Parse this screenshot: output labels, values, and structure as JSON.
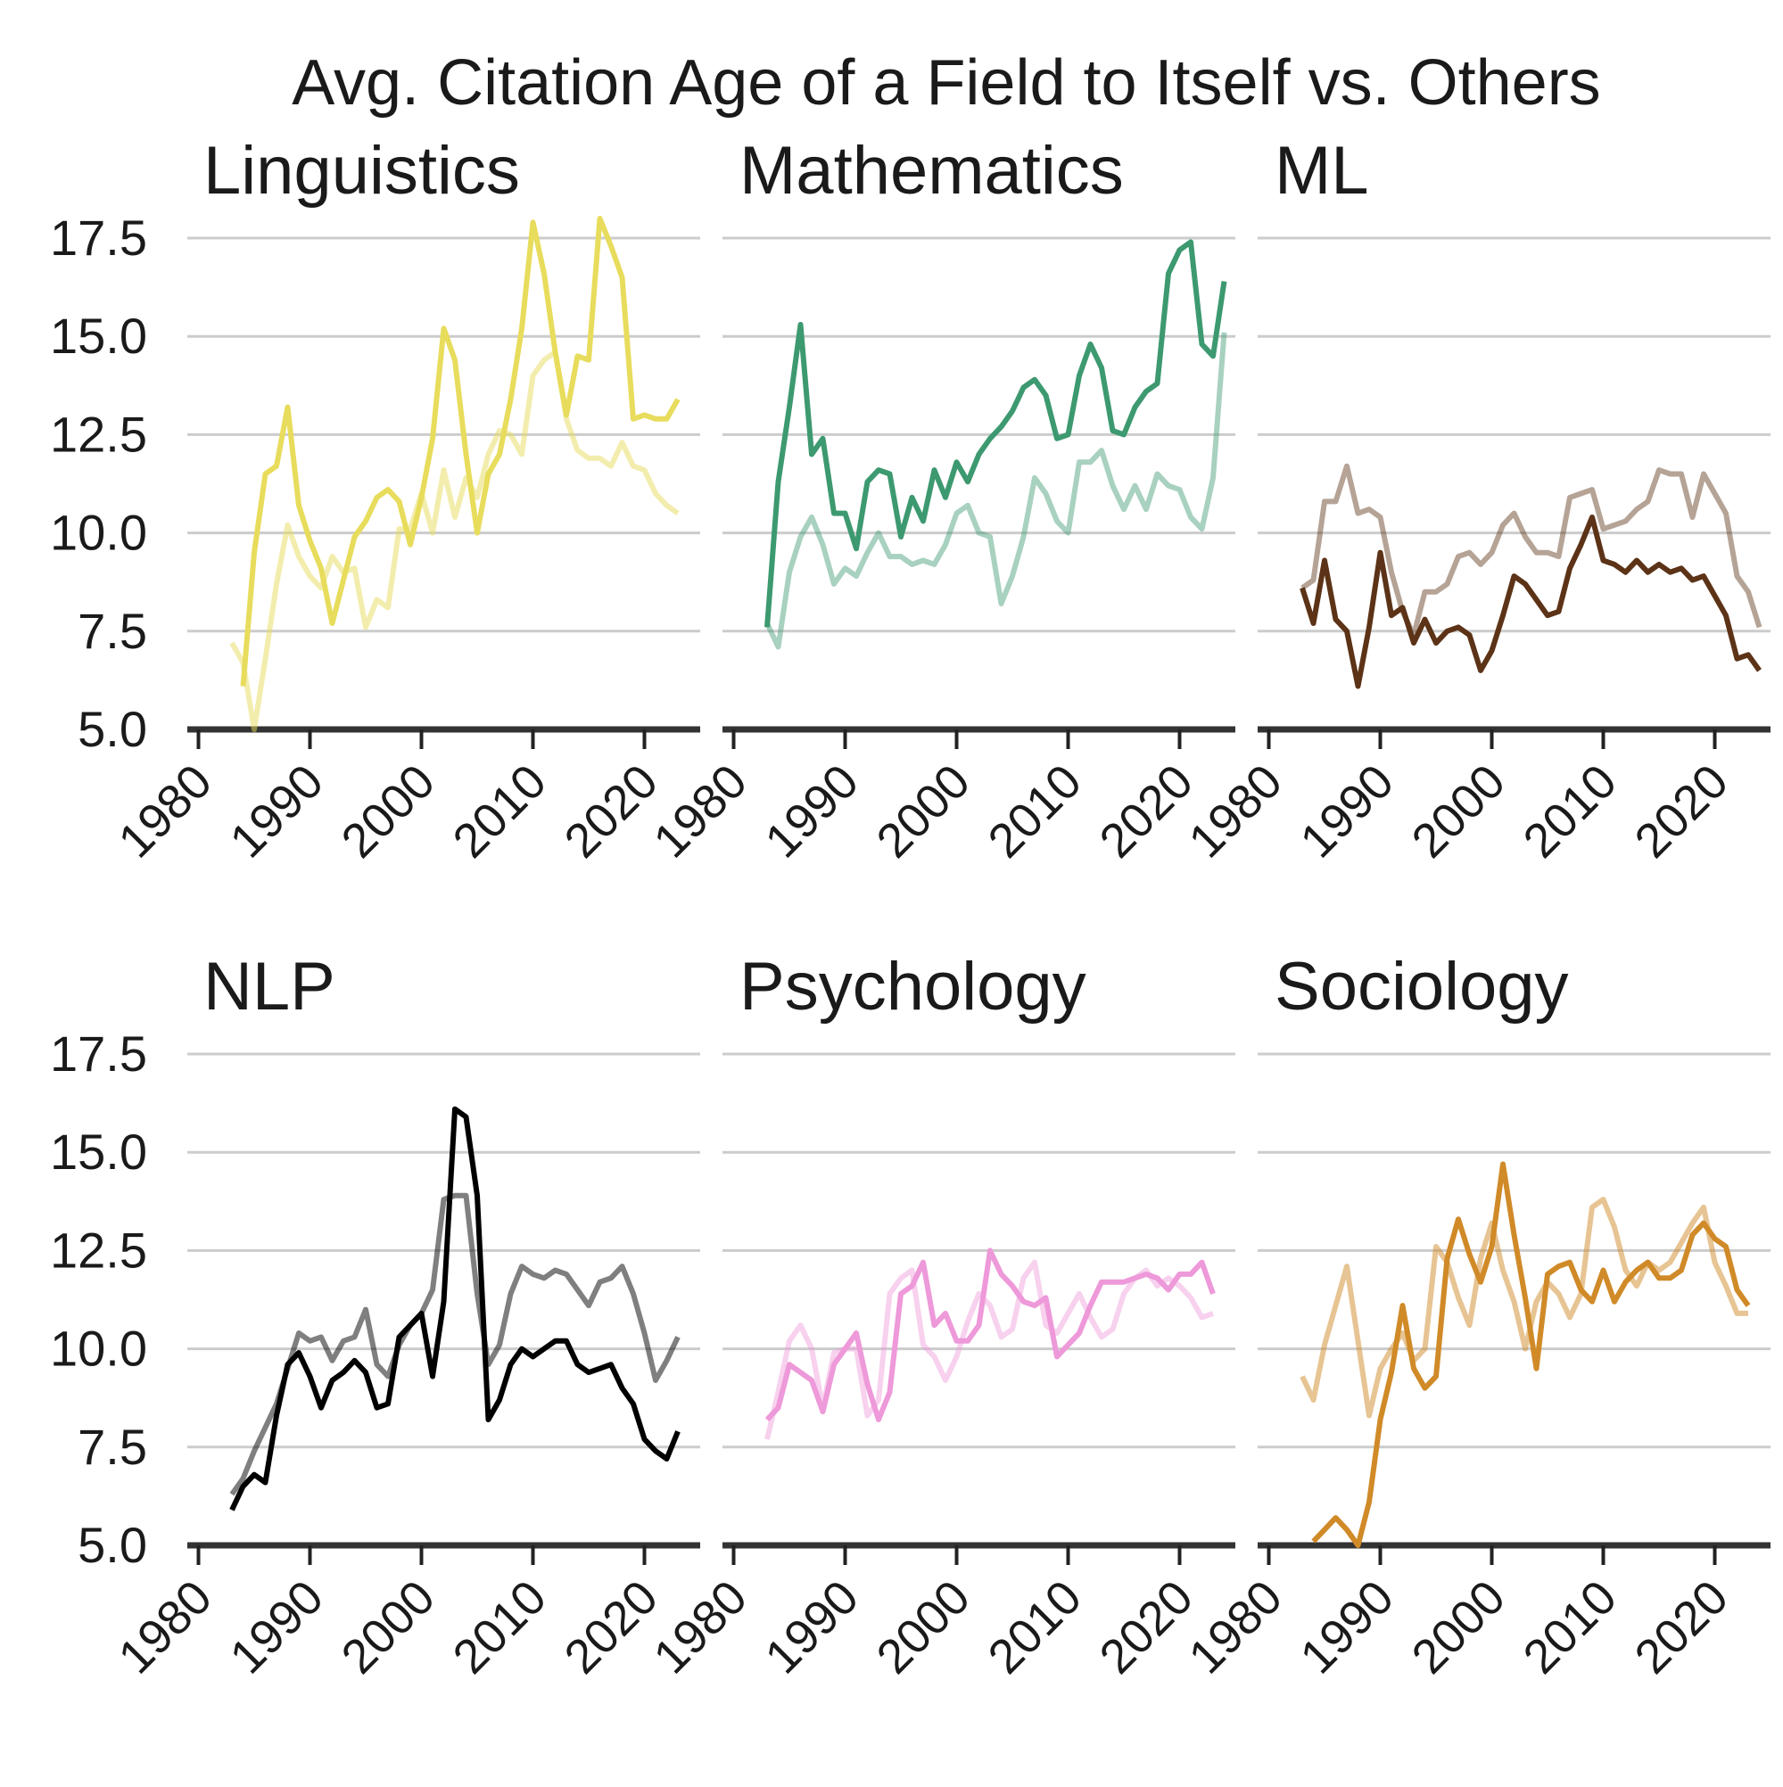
{
  "chart_data": {
    "type": "line",
    "title": "Avg. Citation Age of a Field to Itself vs. Others",
    "y_ticks": [
      "5.0",
      "7.5",
      "10.0",
      "12.5",
      "15.0",
      "17.5"
    ],
    "x_ticks": [
      "1980",
      "1990",
      "2000",
      "2010",
      "2020"
    ],
    "ylim": [
      5.0,
      18.0
    ],
    "xlim": [
      1979,
      2025
    ],
    "grid": true,
    "legend": "none",
    "panels": [
      {
        "name": "Linguistics",
        "color": "#e8dc5c",
        "series": [
          {
            "values_start": 1983,
            "alpha": 0.5,
            "values": [
              7.2,
              6.7,
              5.0,
              6.8,
              8.7,
              10.2,
              9.4,
              8.9,
              8.6,
              9.4,
              9.0,
              9.1,
              7.6,
              8.3,
              8.1,
              10.1,
              10.1,
              11.0,
              10.0,
              11.6,
              10.4,
              11.4,
              10.9,
              12.0,
              12.6,
              12.5,
              12.0,
              14.0,
              14.4,
              14.6,
              12.9,
              12.1,
              11.9,
              11.9,
              11.7,
              12.3,
              11.7,
              11.6,
              11.0,
              10.7,
              10.5
            ]
          },
          {
            "values_start": 1984,
            "alpha": 1.0,
            "values": [
              6.1,
              9.5,
              11.5,
              11.7,
              13.2,
              10.7,
              9.8,
              9.1,
              7.7,
              8.8,
              9.9,
              10.3,
              10.9,
              11.1,
              10.8,
              9.7,
              10.9,
              12.4,
              15.2,
              14.4,
              12.0,
              10.0,
              11.5,
              12.0,
              13.4,
              15.2,
              17.9,
              16.6,
              14.6,
              13.0,
              14.5,
              14.4,
              18.0,
              17.3,
              16.5,
              12.9,
              13.0,
              12.9,
              12.9,
              13.4
            ]
          }
        ]
      },
      {
        "name": "Mathematics",
        "color": "#3d9970",
        "series": [
          {
            "values_start": 1983,
            "alpha": 0.45,
            "values": [
              7.7,
              7.1,
              9.0,
              9.9,
              10.4,
              9.7,
              8.7,
              9.1,
              8.9,
              9.5,
              10.0,
              9.4,
              9.4,
              9.2,
              9.3,
              9.2,
              9.7,
              10.5,
              10.7,
              10.0,
              9.9,
              8.2,
              8.9,
              9.9,
              11.4,
              11.0,
              10.3,
              10.0,
              11.8,
              11.8,
              12.1,
              11.2,
              10.6,
              11.2,
              10.6,
              11.5,
              11.2,
              11.1,
              10.4,
              10.1,
              11.4,
              15.1
            ]
          },
          {
            "values_start": 1983,
            "alpha": 1.0,
            "values": [
              7.6,
              11.3,
              13.2,
              15.3,
              12.0,
              12.4,
              10.5,
              10.5,
              9.6,
              11.3,
              11.6,
              11.5,
              9.9,
              10.9,
              10.3,
              11.6,
              10.9,
              11.8,
              11.3,
              12.0,
              12.4,
              12.7,
              13.1,
              13.7,
              13.9,
              13.5,
              12.4,
              12.5,
              14.0,
              14.8,
              14.2,
              12.6,
              12.5,
              13.2,
              13.6,
              13.8,
              16.6,
              17.2,
              17.4,
              14.8,
              14.5,
              16.4
            ]
          }
        ]
      },
      {
        "name": "ML",
        "color": "#5c3317",
        "series": [
          {
            "values_start": 1983,
            "alpha": 0.45,
            "values": [
              8.6,
              8.8,
              10.8,
              10.8,
              11.7,
              10.5,
              10.6,
              10.4,
              9.0,
              8.0,
              7.4,
              8.5,
              8.5,
              8.7,
              9.4,
              9.5,
              9.2,
              9.5,
              10.2,
              10.5,
              9.9,
              9.5,
              9.5,
              9.4,
              10.9,
              11.0,
              11.1,
              10.1,
              10.2,
              10.3,
              10.6,
              10.8,
              11.6,
              11.5,
              11.5,
              10.4,
              11.5,
              11.0,
              10.5,
              8.9,
              8.5,
              7.6
            ]
          },
          {
            "values_start": 1983,
            "alpha": 1.0,
            "values": [
              8.6,
              7.7,
              9.3,
              7.8,
              7.5,
              6.1,
              7.6,
              9.5,
              7.9,
              8.1,
              7.2,
              7.8,
              7.2,
              7.5,
              7.6,
              7.4,
              6.5,
              7.0,
              7.9,
              8.9,
              8.7,
              8.3,
              7.9,
              8.0,
              9.1,
              9.7,
              10.4,
              9.3,
              9.2,
              9.0,
              9.3,
              9.0,
              9.2,
              9.0,
              9.1,
              8.8,
              8.9,
              8.4,
              7.9,
              6.8,
              6.9,
              6.5
            ]
          }
        ]
      },
      {
        "name": "NLP",
        "color": "#000000",
        "series": [
          {
            "values_start": 1983,
            "alpha": 0.5,
            "values": [
              6.3,
              6.7,
              7.4,
              8.0,
              8.6,
              9.5,
              10.4,
              10.2,
              10.3,
              9.7,
              10.2,
              10.3,
              11.0,
              9.6,
              9.3,
              10.1,
              10.6,
              10.9,
              11.5,
              13.8,
              13.9,
              13.9,
              11.4,
              9.6,
              10.1,
              11.4,
              12.1,
              11.9,
              11.8,
              12.0,
              11.9,
              11.5,
              11.1,
              11.7,
              11.8,
              12.1,
              11.4,
              10.4,
              9.2,
              9.7,
              10.3
            ]
          },
          {
            "values_start": 1983,
            "alpha": 1.0,
            "values": [
              5.9,
              6.5,
              6.8,
              6.6,
              8.3,
              9.6,
              9.9,
              9.3,
              8.5,
              9.2,
              9.4,
              9.7,
              9.4,
              8.5,
              8.6,
              10.3,
              10.6,
              10.9,
              9.3,
              11.2,
              16.1,
              15.9,
              13.9,
              8.2,
              8.7,
              9.6,
              10.0,
              9.8,
              10.0,
              10.2,
              10.2,
              9.6,
              9.4,
              9.5,
              9.6,
              9.0,
              8.6,
              7.7,
              7.4,
              7.2,
              7.9
            ]
          }
        ]
      },
      {
        "name": "Psychology",
        "color": "#ee99d9",
        "series": [
          {
            "values_start": 1983,
            "alpha": 0.45,
            "values": [
              7.7,
              8.9,
              10.2,
              10.6,
              10.0,
              8.5,
              9.9,
              10.0,
              10.0,
              8.3,
              8.7,
              11.4,
              11.8,
              12.0,
              10.1,
              9.8,
              9.2,
              9.8,
              10.7,
              11.4,
              11.1,
              10.3,
              10.5,
              11.8,
              12.2,
              10.6,
              10.4,
              10.9,
              11.4,
              10.8,
              10.3,
              10.5,
              11.4,
              11.8,
              12.0,
              11.6,
              11.8,
              11.6,
              11.3,
              10.8,
              10.9
            ]
          },
          {
            "values_start": 1983,
            "alpha": 1.0,
            "values": [
              8.2,
              8.5,
              9.6,
              9.4,
              9.2,
              8.4,
              9.6,
              10.0,
              10.4,
              9.1,
              8.2,
              8.9,
              11.4,
              11.6,
              12.2,
              10.6,
              10.9,
              10.2,
              10.2,
              10.6,
              12.5,
              11.9,
              11.6,
              11.2,
              11.1,
              11.3,
              9.8,
              10.1,
              10.4,
              11.1,
              11.7,
              11.7,
              11.7,
              11.8,
              11.9,
              11.8,
              11.5,
              11.9,
              11.9,
              12.2,
              11.4
            ]
          }
        ]
      },
      {
        "name": "Sociology",
        "color": "#d08a28",
        "series": [
          {
            "values_start": 1983,
            "alpha": 0.5,
            "values": [
              9.3,
              8.7,
              10.1,
              11.1,
              12.1,
              10.2,
              8.3,
              9.5,
              10.0,
              10.4,
              9.7,
              10.0,
              12.6,
              12.2,
              11.3,
              10.6,
              12.3,
              13.2,
              12.0,
              11.2,
              10.0,
              11.2,
              11.7,
              11.4,
              10.8,
              11.4,
              13.6,
              13.8,
              13.1,
              12.0,
              11.6,
              12.2,
              12.0,
              12.2,
              12.7,
              13.2,
              13.6,
              12.2,
              11.6,
              10.9,
              10.9
            ]
          },
          {
            "values_start": 1984,
            "alpha": 1.0,
            "values": [
              5.1,
              5.4,
              5.7,
              5.4,
              5.0,
              6.1,
              8.2,
              9.4,
              11.1,
              9.5,
              9.0,
              9.3,
              12.3,
              13.3,
              12.4,
              11.7,
              12.6,
              14.7,
              12.9,
              11.3,
              9.5,
              11.9,
              12.1,
              12.2,
              11.5,
              11.2,
              12.0,
              11.2,
              11.7,
              12.0,
              12.2,
              11.8,
              11.8,
              12.0,
              12.9,
              13.2,
              12.8,
              12.6,
              11.5,
              11.1
            ]
          }
        ]
      }
    ]
  }
}
